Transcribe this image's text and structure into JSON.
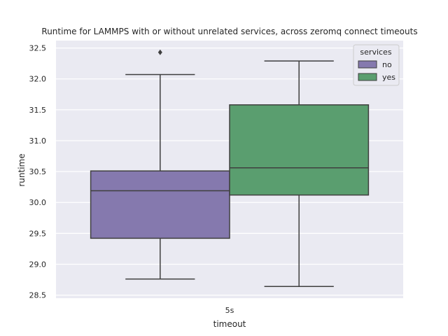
{
  "chart_data": {
    "type": "box",
    "title": "Runtime for LAMMPS with or without unrelated services, across zeromq connect timeouts",
    "xlabel": "timeout",
    "ylabel": "runtime",
    "categories": [
      "5s"
    ],
    "ylim": [
      28.45,
      32.62
    ],
    "yticks": [
      28.5,
      29.0,
      29.5,
      30.0,
      30.5,
      31.0,
      31.5,
      32.0,
      32.5
    ],
    "ytick_labels": [
      "28.5",
      "29.0",
      "29.5",
      "30.0",
      "30.5",
      "31.0",
      "31.5",
      "32.0",
      "32.5"
    ],
    "grid": true,
    "legend": {
      "title": "services",
      "position": "top-right"
    },
    "series": [
      {
        "name": "no",
        "color": "#8579ae",
        "boxes": [
          {
            "category": "5s",
            "whisker_low": 28.76,
            "q1": 29.42,
            "median": 30.19,
            "q3": 30.51,
            "whisker_high": 32.07,
            "outliers": [
              32.43
            ]
          }
        ]
      },
      {
        "name": "yes",
        "color": "#5a9e6f",
        "boxes": [
          {
            "category": "5s",
            "whisker_low": 28.64,
            "q1": 30.12,
            "median": 30.56,
            "q3": 31.58,
            "whisker_high": 32.29,
            "outliers": []
          }
        ]
      }
    ]
  }
}
